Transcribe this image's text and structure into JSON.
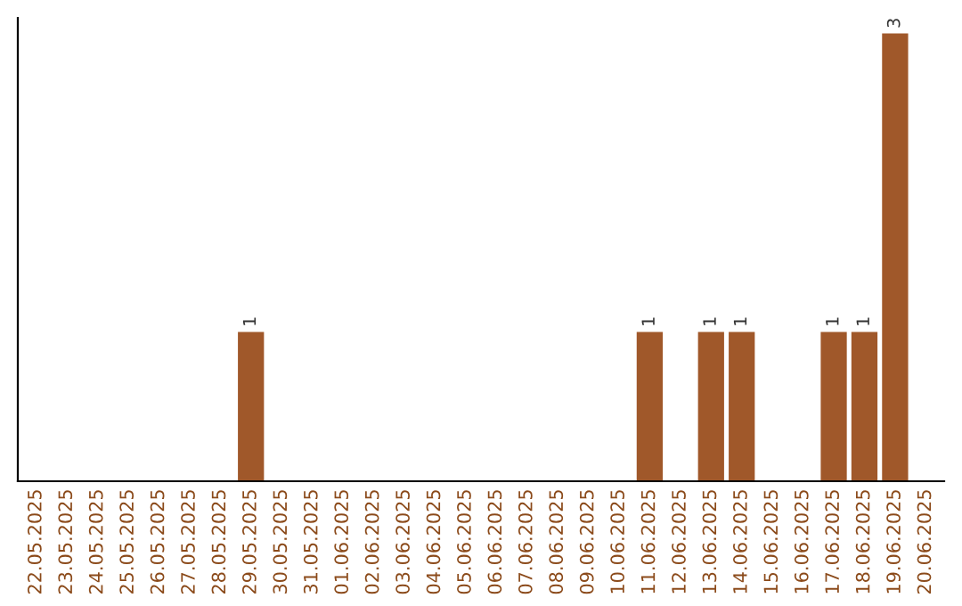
{
  "chart_data": {
    "type": "bar",
    "categories": [
      "22.05.2025",
      "23.05.2025",
      "24.05.2025",
      "25.05.2025",
      "26.05.2025",
      "27.05.2025",
      "28.05.2025",
      "29.05.2025",
      "30.05.2025",
      "31.05.2025",
      "01.06.2025",
      "02.06.2025",
      "03.06.2025",
      "04.06.2025",
      "05.06.2025",
      "06.06.2025",
      "07.06.2025",
      "08.06.2025",
      "09.06.2025",
      "10.06.2025",
      "11.06.2025",
      "12.06.2025",
      "13.06.2025",
      "14.06.2025",
      "15.06.2025",
      "16.06.2025",
      "17.06.2025",
      "18.06.2025",
      "19.06.2025",
      "20.06.2025"
    ],
    "values": [
      0,
      0,
      0,
      0,
      0,
      0,
      0,
      1,
      0,
      0,
      0,
      0,
      0,
      0,
      0,
      0,
      0,
      0,
      0,
      0,
      1,
      0,
      1,
      1,
      0,
      0,
      1,
      1,
      3,
      0
    ],
    "value_labels": [
      null,
      null,
      null,
      null,
      null,
      null,
      null,
      "1",
      null,
      null,
      null,
      null,
      null,
      null,
      null,
      null,
      null,
      null,
      null,
      null,
      "1",
      null,
      "1",
      "1",
      null,
      null,
      "1",
      "1",
      "3",
      null
    ],
    "color": "#a0582a",
    "grid": false,
    "tick_labels": "x"
  }
}
